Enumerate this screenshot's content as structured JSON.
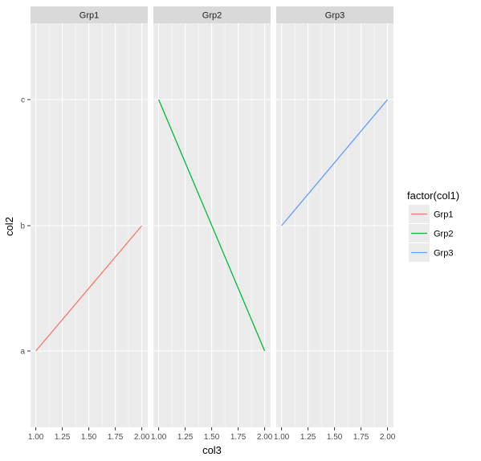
{
  "chart_data": {
    "type": "line",
    "facet_by": "col1",
    "facets": [
      {
        "name": "Grp1",
        "color": "#F8766D",
        "points": [
          {
            "x": 1.0,
            "y": "a"
          },
          {
            "x": 2.0,
            "y": "b"
          }
        ]
      },
      {
        "name": "Grp2",
        "color": "#00BA38",
        "points": [
          {
            "x": 1.0,
            "y": "c"
          },
          {
            "x": 2.0,
            "y": "a"
          }
        ]
      },
      {
        "name": "Grp3",
        "color": "#619CFF",
        "points": [
          {
            "x": 1.0,
            "y": "b"
          },
          {
            "x": 2.0,
            "y": "c"
          }
        ]
      }
    ],
    "xlabel": "col3",
    "ylabel": "col2",
    "x_ticks": [
      "1.00",
      "1.25",
      "1.50",
      "1.75",
      "2.00"
    ],
    "x_tick_values": [
      1.0,
      1.25,
      1.5,
      1.75,
      2.0
    ],
    "xlim": [
      0.95,
      2.05
    ],
    "y_categories": [
      "a",
      "b",
      "c"
    ],
    "y_tick_labels": [
      "a",
      "b",
      "c"
    ],
    "grid": true,
    "legend": {
      "title": "factor(col1)",
      "position": "right",
      "entries": [
        {
          "label": "Grp1",
          "color": "#F8766D"
        },
        {
          "label": "Grp2",
          "color": "#00BA38"
        },
        {
          "label": "Grp3",
          "color": "#619CFF"
        }
      ]
    }
  }
}
